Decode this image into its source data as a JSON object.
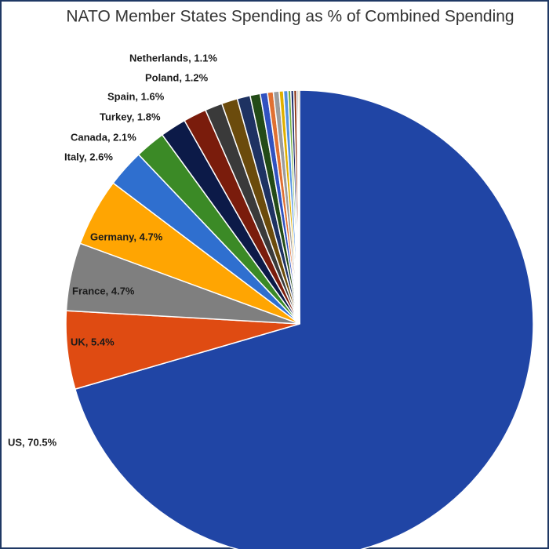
{
  "chart_data": {
    "type": "pie",
    "title": "NATO Member States Spending as % of Combined Spending",
    "values": [
      70.5,
      5.4,
      4.7,
      4.7,
      2.6,
      2.1,
      1.8,
      1.6,
      1.2,
      1.1,
      0.9,
      0.7,
      0.5,
      0.4,
      0.4,
      0.3,
      0.3,
      0.2,
      0.2,
      0.2,
      0.1,
      0.1
    ],
    "value_labels": [
      "US, 70.5%",
      "UK, 5.4%",
      "France, 4.7%",
      "Germany, 4.7%",
      "Italy, 2.6%",
      "Canada, 2.1%",
      "Turkey, 1.8%",
      "Spain, 1.6%",
      "Poland, 1.2%",
      "Netherlands, 1.1%",
      null,
      null,
      null,
      null,
      null,
      null,
      null,
      null,
      null,
      null,
      null,
      null
    ],
    "colors": [
      "#2045a5",
      "#df4b12",
      "#7f7f7f",
      "#ffa502",
      "#2f6fcf",
      "#3b8a26",
      "#0c1a48",
      "#7a1c0c",
      "#3a3a3a",
      "#6b4b0c",
      "#1e3262",
      "#234b17",
      "#3152c0",
      "#e07032",
      "#9c9c9c",
      "#e0b000",
      "#5392e0",
      "#72b043",
      "#1b2b6b",
      "#8a3212",
      "#565656",
      "#a27212"
    ]
  }
}
